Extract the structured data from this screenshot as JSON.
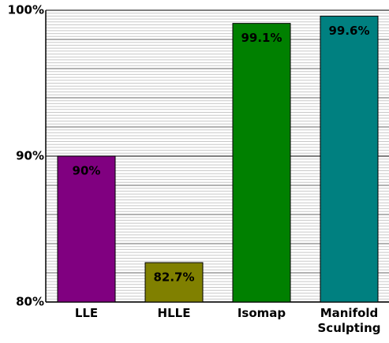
{
  "chart_data": {
    "type": "bar",
    "categories": [
      "LLE",
      "HLLE",
      "Isomap",
      "Manifold Sculpting"
    ],
    "values": [
      90,
      82.7,
      99.1,
      99.6
    ],
    "value_labels": [
      "90%",
      "82.7%",
      "99.1%",
      "99.6%"
    ],
    "colors": [
      "#800080",
      "#808000",
      "#008000",
      "#008080"
    ],
    "ylim": [
      80,
      100
    ],
    "yticks": [
      {
        "value": 80,
        "label": "80%"
      },
      {
        "value": 90,
        "label": "90%"
      },
      {
        "value": 100,
        "label": "100%"
      }
    ],
    "grid_yticks": [
      82,
      84,
      86,
      88,
      92,
      94,
      96,
      98
    ],
    "minor_grid_step": 0.2,
    "grid": true
  }
}
